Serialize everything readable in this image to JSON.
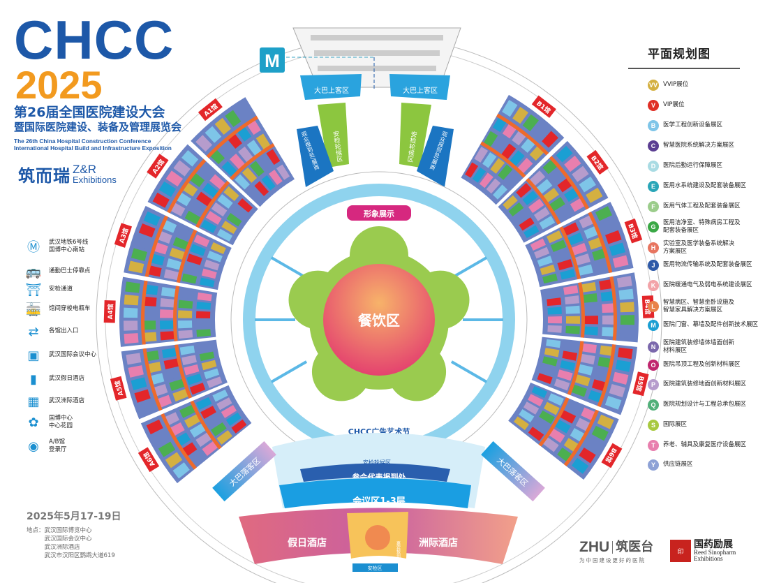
{
  "header": {
    "brand": "CHCC",
    "year": "2025",
    "title_cn_1": "第26届全国医院建设大会",
    "title_cn_2": "暨国际医院建设、装备及管理展览会",
    "title_en_1": "The 26th China Hospital Construction Conference",
    "title_en_2": "International Hospital Build and Infrastructure Exposition",
    "organizer_cn": "筑而瑞",
    "organizer_en_1": "Z&R",
    "organizer_en_2": "Exhibitions"
  },
  "left_legend": [
    {
      "icon": "metro-icon",
      "label": "武汉地铁6号线\n国博中心南站"
    },
    {
      "icon": "bus-icon",
      "label": "通勤巴士停靠点"
    },
    {
      "icon": "security-gate-icon",
      "label": "安检通道"
    },
    {
      "icon": "shuttle-cart-icon",
      "label": "馆间穿梭电瓶车"
    },
    {
      "icon": "entrance-icon",
      "label": "各馆出入口"
    },
    {
      "icon": "conference-center-icon",
      "label": "武汉国际会议中心"
    },
    {
      "icon": "holiday-hotel-icon",
      "label": "武汉假日酒店"
    },
    {
      "icon": "intercontinental-hotel-icon",
      "label": "武汉洲际酒店"
    },
    {
      "icon": "garden-icon",
      "label": "国博中心\n中心花园"
    },
    {
      "icon": "registration-hall-icon",
      "label": "A/B馆\n登录厅"
    }
  ],
  "right_legend": {
    "title": "平面规划图",
    "items": [
      {
        "code": "VV",
        "label": "VVIP展位",
        "color": "#d4b041"
      },
      {
        "code": "V",
        "label": "VIP展位",
        "color": "#e03026"
      },
      {
        "code": "B",
        "label": "医学工程创新设备展区",
        "color": "#7ec5e8"
      },
      {
        "code": "C",
        "label": "智慧医院系统解决方案展区",
        "color": "#5b3e92"
      },
      {
        "code": "D",
        "label": "医院后勤运行保障展区",
        "color": "#a9dbe3"
      },
      {
        "code": "E",
        "label": "医用水系统建设及配套装备展区",
        "color": "#2aa6b8"
      },
      {
        "code": "F",
        "label": "医用气体工程及配套装备展区",
        "color": "#9ccd8c"
      },
      {
        "code": "G",
        "label": "医用洁净室、特殊病房工程及\n配套装备展区",
        "color": "#3aa845"
      },
      {
        "code": "H",
        "label": "实验室及医学装备系统解决\n方案展区",
        "color": "#e77560"
      },
      {
        "code": "J",
        "label": "医用物流传输系统及配套装备展区",
        "color": "#2f5aa8"
      },
      {
        "code": "K",
        "label": "医院暖通电气及弱电系统建设展区",
        "color": "#f2a3a8"
      },
      {
        "code": "L",
        "label": "智慧病区、智慧坐卧设施及\n智慧家具解决方案展区",
        "color": "#e8824a"
      },
      {
        "code": "M",
        "label": "医院门窗、幕墙及配件创新技术展区",
        "color": "#1b9fd3"
      },
      {
        "code": "N",
        "label": "医院建筑装修墙体墙面创新\n材料展区",
        "color": "#7b68ac"
      },
      {
        "code": "O",
        "label": "医院吊顶工程及创新材料展区",
        "color": "#c0266e"
      },
      {
        "code": "P",
        "label": "医院建筑装修地面创新材料展区",
        "color": "#b69ccc"
      },
      {
        "code": "Q",
        "label": "医院规划设计与工程总承包展区",
        "color": "#52b07a"
      },
      {
        "code": "S",
        "label": "国际展区",
        "color": "#a8c940"
      },
      {
        "code": "T",
        "label": "养老、辅具及康复医疗设备展区",
        "color": "#e87fae"
      },
      {
        "code": "Y",
        "label": "供应链展区",
        "color": "#8ea2d6"
      }
    ]
  },
  "map": {
    "center_label": "餐饮区",
    "image_display": "形象展示",
    "ad_festival": "CHCC广告艺术节",
    "bus_pickup": "大巴上客区",
    "bus_dropoff": "大巴落客区",
    "security_waiting": "安检轮候区",
    "visitor_registration": "观众报到处/展商",
    "delegate_registration": "参会代表报到处",
    "conference_area": "会议区1-3层",
    "holiday_hotel": "假日酒店",
    "intercontinental_hotel": "洲际酒店",
    "security_area": "安检区",
    "vip_registration": "嘉宾报到处",
    "halls_left": [
      "A1馆",
      "A2馆",
      "A3馆",
      "A4馆",
      "A5馆",
      "A6馆"
    ],
    "halls_right": [
      "B1馆",
      "B2馆",
      "B3馆",
      "B4馆",
      "B5馆",
      "B6馆"
    ],
    "colors": {
      "hall_blue": "#6b82c4",
      "hall_red": "#e3262a",
      "hall_green": "#4caf50",
      "aisle": "#ee6a2b",
      "ring": "#8fd3ee",
      "garden": "#9acb4f"
    }
  },
  "footer": {
    "date": "2025年5月17-19日",
    "venue_label": "地点：",
    "venues": [
      "武汉国际博览中心",
      "武汉国际会议中心",
      "武汉洲际酒店",
      "武汉市汉阳区鹦鹉大道619"
    ]
  },
  "logos": {
    "zhu_brand": "ZHU",
    "zhu_cn": "筑医台",
    "zhu_slogan": "为中国建设更好的医院",
    "reed_cn": "国药励展",
    "reed_en_1": "Reed Sinopharm",
    "reed_en_2": "Exhibitions"
  }
}
